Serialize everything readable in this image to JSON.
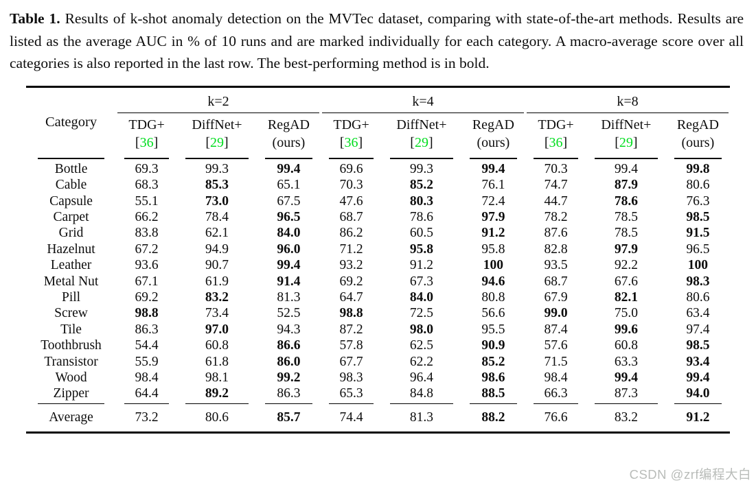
{
  "caption": {
    "label": "Table 1.",
    "text": "Results of k-shot anomaly detection on the MVTec dataset, comparing with state-of-the-art methods. Results are listed as the average AUC in % of 10 runs and are marked individually for each category. A macro-average score over all categories is also reported in the last row. The best-performing method is in bold."
  },
  "colors": {
    "cite_green": "#00dd1e",
    "text_ink": "#0d0d0d",
    "watermark_gray": "#b9bcb9"
  },
  "watermark": "CSDN @zrf编程大白",
  "table": {
    "category_header": "Category",
    "group_headers": [
      "k=2",
      "k=4",
      "k=8"
    ],
    "methods": [
      {
        "name": "TDG+",
        "cite": "36"
      },
      {
        "name": "DiffNet+",
        "cite": "29"
      },
      {
        "name": "RegAD",
        "sub": "(ours)"
      }
    ],
    "rows": [
      {
        "category": "Bottle",
        "values": [
          "69.3",
          "99.3",
          "99.4",
          "69.6",
          "99.3",
          "99.4",
          "70.3",
          "99.4",
          "99.8"
        ],
        "bold": [
          false,
          false,
          true,
          false,
          false,
          true,
          false,
          false,
          true
        ]
      },
      {
        "category": "Cable",
        "values": [
          "68.3",
          "85.3",
          "65.1",
          "70.3",
          "85.2",
          "76.1",
          "74.7",
          "87.9",
          "80.6"
        ],
        "bold": [
          false,
          true,
          false,
          false,
          true,
          false,
          false,
          true,
          false
        ]
      },
      {
        "category": "Capsule",
        "values": [
          "55.1",
          "73.0",
          "67.5",
          "47.6",
          "80.3",
          "72.4",
          "44.7",
          "78.6",
          "76.3"
        ],
        "bold": [
          false,
          true,
          false,
          false,
          true,
          false,
          false,
          true,
          false
        ]
      },
      {
        "category": "Carpet",
        "values": [
          "66.2",
          "78.4",
          "96.5",
          "68.7",
          "78.6",
          "97.9",
          "78.2",
          "78.5",
          "98.5"
        ],
        "bold": [
          false,
          false,
          true,
          false,
          false,
          true,
          false,
          false,
          true
        ]
      },
      {
        "category": "Grid",
        "values": [
          "83.8",
          "62.1",
          "84.0",
          "86.2",
          "60.5",
          "91.2",
          "87.6",
          "78.5",
          "91.5"
        ],
        "bold": [
          false,
          false,
          true,
          false,
          false,
          true,
          false,
          false,
          true
        ]
      },
      {
        "category": "Hazelnut",
        "values": [
          "67.2",
          "94.9",
          "96.0",
          "71.2",
          "95.8",
          "95.8",
          "82.8",
          "97.9",
          "96.5"
        ],
        "bold": [
          false,
          false,
          true,
          false,
          true,
          false,
          false,
          true,
          false
        ]
      },
      {
        "category": "Leather",
        "values": [
          "93.6",
          "90.7",
          "99.4",
          "93.2",
          "91.2",
          "100",
          "93.5",
          "92.2",
          "100"
        ],
        "bold": [
          false,
          false,
          true,
          false,
          false,
          true,
          false,
          false,
          true
        ]
      },
      {
        "category": "Metal Nut",
        "values": [
          "67.1",
          "61.9",
          "91.4",
          "69.2",
          "67.3",
          "94.6",
          "68.7",
          "67.6",
          "98.3"
        ],
        "bold": [
          false,
          false,
          true,
          false,
          false,
          true,
          false,
          false,
          true
        ]
      },
      {
        "category": "Pill",
        "values": [
          "69.2",
          "83.2",
          "81.3",
          "64.7",
          "84.0",
          "80.8",
          "67.9",
          "82.1",
          "80.6"
        ],
        "bold": [
          false,
          true,
          false,
          false,
          true,
          false,
          false,
          true,
          false
        ]
      },
      {
        "category": "Screw",
        "values": [
          "98.8",
          "73.4",
          "52.5",
          "98.8",
          "72.5",
          "56.6",
          "99.0",
          "75.0",
          "63.4"
        ],
        "bold": [
          true,
          false,
          false,
          true,
          false,
          false,
          true,
          false,
          false
        ]
      },
      {
        "category": "Tile",
        "values": [
          "86.3",
          "97.0",
          "94.3",
          "87.2",
          "98.0",
          "95.5",
          "87.4",
          "99.6",
          "97.4"
        ],
        "bold": [
          false,
          true,
          false,
          false,
          true,
          false,
          false,
          true,
          false
        ]
      },
      {
        "category": "Toothbrush",
        "values": [
          "54.4",
          "60.8",
          "86.6",
          "57.8",
          "62.5",
          "90.9",
          "57.6",
          "60.8",
          "98.5"
        ],
        "bold": [
          false,
          false,
          true,
          false,
          false,
          true,
          false,
          false,
          true
        ]
      },
      {
        "category": "Transistor",
        "values": [
          "55.9",
          "61.8",
          "86.0",
          "67.7",
          "62.2",
          "85.2",
          "71.5",
          "63.3",
          "93.4"
        ],
        "bold": [
          false,
          false,
          true,
          false,
          false,
          true,
          false,
          false,
          true
        ]
      },
      {
        "category": "Wood",
        "values": [
          "98.4",
          "98.1",
          "99.2",
          "98.3",
          "96.4",
          "98.6",
          "98.4",
          "99.4",
          "99.4"
        ],
        "bold": [
          false,
          false,
          true,
          false,
          false,
          true,
          false,
          true,
          true
        ]
      },
      {
        "category": "Zipper",
        "values": [
          "64.4",
          "89.2",
          "86.3",
          "65.3",
          "84.8",
          "88.5",
          "66.3",
          "87.3",
          "94.0"
        ],
        "bold": [
          false,
          true,
          false,
          false,
          false,
          true,
          false,
          false,
          true
        ]
      }
    ],
    "average": {
      "category": "Average",
      "values": [
        "73.2",
        "80.6",
        "85.7",
        "74.4",
        "81.3",
        "88.2",
        "76.6",
        "83.2",
        "91.2"
      ],
      "bold": [
        false,
        false,
        true,
        false,
        false,
        true,
        false,
        false,
        true
      ]
    }
  }
}
